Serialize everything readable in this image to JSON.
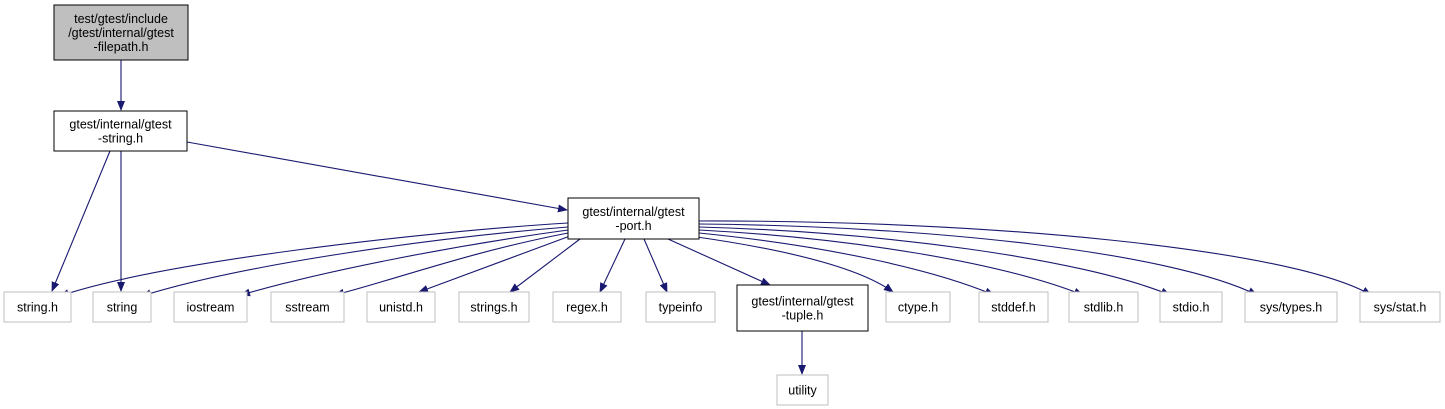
{
  "diagram": {
    "type": "include-dependency-graph",
    "colors": {
      "edge": "#191970",
      "root_fill": "#bfbfbf",
      "root_border": "#000000",
      "internal_border": "#000000",
      "external_border": "#bfbfbf",
      "text": "#000000"
    },
    "nodes": [
      {
        "id": "filepath",
        "kind": "root",
        "lines": [
          "test/gtest/include",
          "/gtest/internal/gtest",
          "-filepath.h"
        ]
      },
      {
        "id": "string_h_gtest",
        "kind": "internal",
        "lines": [
          "gtest/internal/gtest",
          "-string.h"
        ]
      },
      {
        "id": "port",
        "kind": "internal",
        "lines": [
          "gtest/internal/gtest",
          "-port.h"
        ]
      },
      {
        "id": "string_h",
        "kind": "external",
        "lines": [
          "string.h"
        ]
      },
      {
        "id": "string",
        "kind": "external",
        "lines": [
          "string"
        ]
      },
      {
        "id": "iostream",
        "kind": "external",
        "lines": [
          "iostream"
        ]
      },
      {
        "id": "sstream",
        "kind": "external",
        "lines": [
          "sstream"
        ]
      },
      {
        "id": "unistd",
        "kind": "external",
        "lines": [
          "unistd.h"
        ]
      },
      {
        "id": "strings",
        "kind": "external",
        "lines": [
          "strings.h"
        ]
      },
      {
        "id": "regex",
        "kind": "external",
        "lines": [
          "regex.h"
        ]
      },
      {
        "id": "typeinfo",
        "kind": "external",
        "lines": [
          "typeinfo"
        ]
      },
      {
        "id": "tuple",
        "kind": "internal",
        "lines": [
          "gtest/internal/gtest",
          "-tuple.h"
        ]
      },
      {
        "id": "ctype",
        "kind": "external",
        "lines": [
          "ctype.h"
        ]
      },
      {
        "id": "stddef",
        "kind": "external",
        "lines": [
          "stddef.h"
        ]
      },
      {
        "id": "stdlib",
        "kind": "external",
        "lines": [
          "stdlib.h"
        ]
      },
      {
        "id": "stdio",
        "kind": "external",
        "lines": [
          "stdio.h"
        ]
      },
      {
        "id": "systypes",
        "kind": "external",
        "lines": [
          "sys/types.h"
        ]
      },
      {
        "id": "sysstat",
        "kind": "external",
        "lines": [
          "sys/stat.h"
        ]
      },
      {
        "id": "utility",
        "kind": "external",
        "lines": [
          "utility"
        ]
      }
    ],
    "edges": [
      {
        "from": "filepath",
        "to": "string_h_gtest"
      },
      {
        "from": "string_h_gtest",
        "to": "string_h"
      },
      {
        "from": "string_h_gtest",
        "to": "string"
      },
      {
        "from": "string_h_gtest",
        "to": "port"
      },
      {
        "from": "port",
        "to": "string_h"
      },
      {
        "from": "port",
        "to": "string"
      },
      {
        "from": "port",
        "to": "iostream"
      },
      {
        "from": "port",
        "to": "sstream"
      },
      {
        "from": "port",
        "to": "unistd"
      },
      {
        "from": "port",
        "to": "strings"
      },
      {
        "from": "port",
        "to": "regex"
      },
      {
        "from": "port",
        "to": "typeinfo"
      },
      {
        "from": "port",
        "to": "tuple"
      },
      {
        "from": "port",
        "to": "ctype"
      },
      {
        "from": "port",
        "to": "stddef"
      },
      {
        "from": "port",
        "to": "stdlib"
      },
      {
        "from": "port",
        "to": "stdio"
      },
      {
        "from": "port",
        "to": "systypes"
      },
      {
        "from": "port",
        "to": "sysstat"
      },
      {
        "from": "tuple",
        "to": "utility"
      }
    ]
  }
}
